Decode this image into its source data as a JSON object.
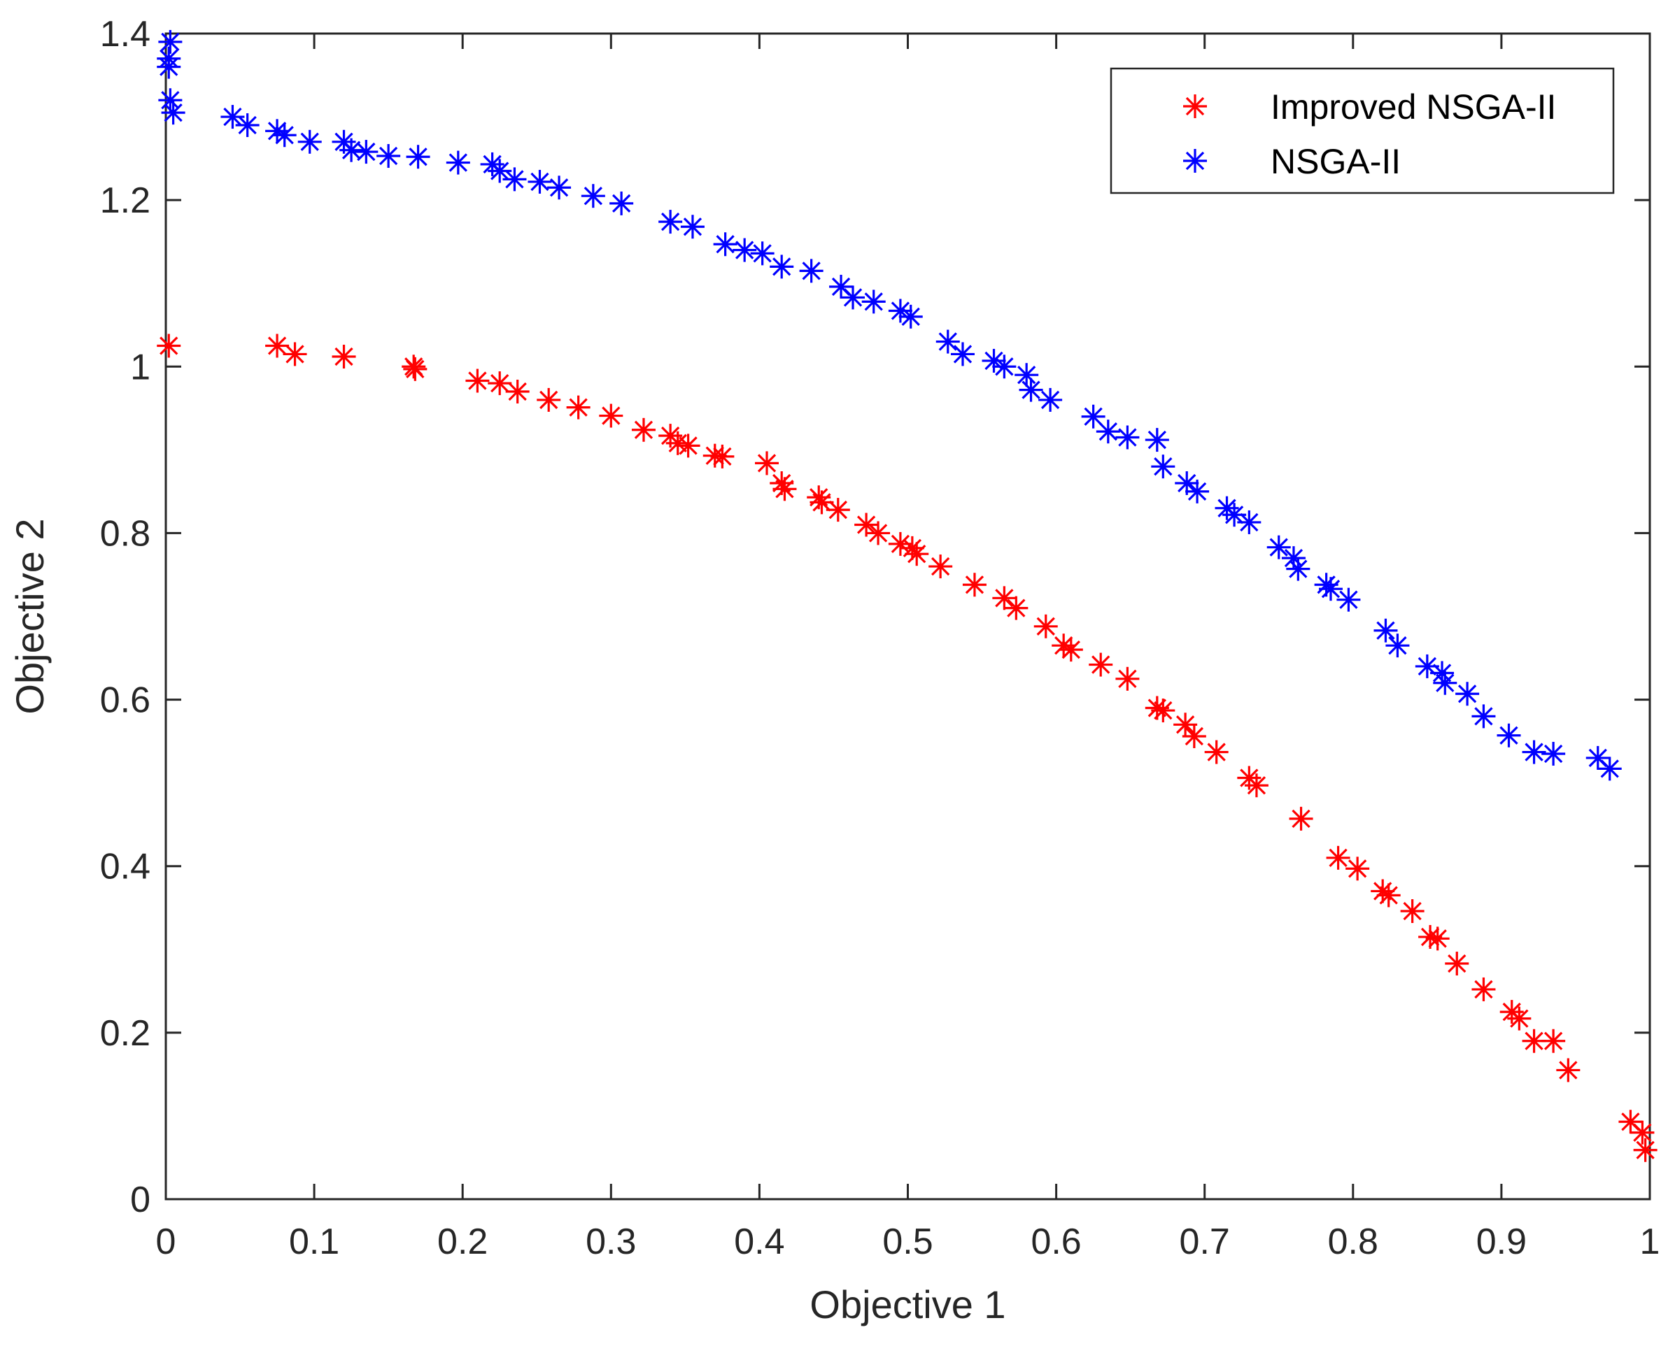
{
  "chart_data": {
    "type": "scatter",
    "title": "",
    "xlabel": "Objective 1",
    "ylabel": "Objective 2",
    "xlim": [
      0,
      1
    ],
    "ylim": [
      0,
      1.4
    ],
    "grid": false,
    "legend_position": "top-right",
    "x_tick_labels": [
      "0",
      "0.1",
      "0.2",
      "0.3",
      "0.4",
      "0.5",
      "0.6",
      "0.7",
      "0.8",
      "0.9",
      "1"
    ],
    "x_tick_values": [
      0,
      0.1,
      0.2,
      0.3,
      0.4,
      0.5,
      0.6,
      0.7,
      0.8,
      0.9,
      1
    ],
    "y_tick_labels": [
      "0",
      "0.2",
      "0.4",
      "0.6",
      "0.8",
      "1",
      "1.2",
      "1.4"
    ],
    "y_tick_values": [
      0,
      0.2,
      0.4,
      0.6,
      0.8,
      1.0,
      1.2,
      1.4
    ],
    "series": [
      {
        "name": "Improved NSGA-II",
        "color": "#ff0000",
        "marker": "asterisk",
        "points": [
          [
            0.002,
            1.025
          ],
          [
            0.075,
            1.025
          ],
          [
            0.087,
            1.015
          ],
          [
            0.12,
            1.012
          ],
          [
            0.167,
            1.0
          ],
          [
            0.168,
            0.997
          ],
          [
            0.21,
            0.983
          ],
          [
            0.225,
            0.98
          ],
          [
            0.237,
            0.97
          ],
          [
            0.258,
            0.96
          ],
          [
            0.278,
            0.951
          ],
          [
            0.3,
            0.941
          ],
          [
            0.322,
            0.924
          ],
          [
            0.34,
            0.917
          ],
          [
            0.345,
            0.908
          ],
          [
            0.352,
            0.905
          ],
          [
            0.37,
            0.893
          ],
          [
            0.375,
            0.892
          ],
          [
            0.405,
            0.884
          ],
          [
            0.415,
            0.86
          ],
          [
            0.417,
            0.853
          ],
          [
            0.44,
            0.843
          ],
          [
            0.442,
            0.837
          ],
          [
            0.453,
            0.828
          ],
          [
            0.472,
            0.81
          ],
          [
            0.48,
            0.8
          ],
          [
            0.495,
            0.787
          ],
          [
            0.503,
            0.782
          ],
          [
            0.506,
            0.775
          ],
          [
            0.522,
            0.76
          ],
          [
            0.545,
            0.738
          ],
          [
            0.565,
            0.722
          ],
          [
            0.573,
            0.71
          ],
          [
            0.593,
            0.688
          ],
          [
            0.605,
            0.665
          ],
          [
            0.61,
            0.66
          ],
          [
            0.63,
            0.642
          ],
          [
            0.648,
            0.625
          ],
          [
            0.668,
            0.59
          ],
          [
            0.672,
            0.587
          ],
          [
            0.687,
            0.57
          ],
          [
            0.693,
            0.556
          ],
          [
            0.708,
            0.537
          ],
          [
            0.73,
            0.506
          ],
          [
            0.735,
            0.497
          ],
          [
            0.765,
            0.457
          ],
          [
            0.79,
            0.41
          ],
          [
            0.803,
            0.397
          ],
          [
            0.82,
            0.37
          ],
          [
            0.824,
            0.365
          ],
          [
            0.84,
            0.346
          ],
          [
            0.852,
            0.315
          ],
          [
            0.857,
            0.313
          ],
          [
            0.87,
            0.283
          ],
          [
            0.888,
            0.252
          ],
          [
            0.907,
            0.225
          ],
          [
            0.912,
            0.217
          ],
          [
            0.922,
            0.19
          ],
          [
            0.935,
            0.19
          ],
          [
            0.945,
            0.155
          ],
          [
            0.987,
            0.093
          ],
          [
            0.995,
            0.08
          ],
          [
            0.997,
            0.059
          ]
        ]
      },
      {
        "name": "NSGA-II",
        "color": "#0000ff",
        "marker": "asterisk",
        "points": [
          [
            0.003,
            1.39
          ],
          [
            0.002,
            1.37
          ],
          [
            0.002,
            1.36
          ],
          [
            0.003,
            1.32
          ],
          [
            0.005,
            1.305
          ],
          [
            0.045,
            1.3
          ],
          [
            0.055,
            1.29
          ],
          [
            0.075,
            1.283
          ],
          [
            0.08,
            1.278
          ],
          [
            0.097,
            1.27
          ],
          [
            0.12,
            1.27
          ],
          [
            0.125,
            1.26
          ],
          [
            0.135,
            1.258
          ],
          [
            0.15,
            1.253
          ],
          [
            0.17,
            1.252
          ],
          [
            0.197,
            1.245
          ],
          [
            0.22,
            1.243
          ],
          [
            0.225,
            1.235
          ],
          [
            0.235,
            1.225
          ],
          [
            0.252,
            1.222
          ],
          [
            0.265,
            1.215
          ],
          [
            0.288,
            1.205
          ],
          [
            0.307,
            1.196
          ],
          [
            0.34,
            1.174
          ],
          [
            0.355,
            1.168
          ],
          [
            0.377,
            1.147
          ],
          [
            0.39,
            1.14
          ],
          [
            0.402,
            1.136
          ],
          [
            0.415,
            1.12
          ],
          [
            0.435,
            1.115
          ],
          [
            0.455,
            1.096
          ],
          [
            0.463,
            1.083
          ],
          [
            0.477,
            1.078
          ],
          [
            0.495,
            1.067
          ],
          [
            0.502,
            1.06
          ],
          [
            0.527,
            1.03
          ],
          [
            0.537,
            1.015
          ],
          [
            0.558,
            1.007
          ],
          [
            0.565,
            1.0
          ],
          [
            0.58,
            0.99
          ],
          [
            0.583,
            0.972
          ],
          [
            0.596,
            0.96
          ],
          [
            0.625,
            0.94
          ],
          [
            0.635,
            0.922
          ],
          [
            0.648,
            0.915
          ],
          [
            0.668,
            0.912
          ],
          [
            0.672,
            0.88
          ],
          [
            0.688,
            0.86
          ],
          [
            0.695,
            0.85
          ],
          [
            0.715,
            0.83
          ],
          [
            0.72,
            0.822
          ],
          [
            0.73,
            0.813
          ],
          [
            0.75,
            0.783
          ],
          [
            0.76,
            0.77
          ],
          [
            0.763,
            0.757
          ],
          [
            0.782,
            0.738
          ],
          [
            0.785,
            0.733
          ],
          [
            0.797,
            0.72
          ],
          [
            0.822,
            0.683
          ],
          [
            0.83,
            0.665
          ],
          [
            0.85,
            0.64
          ],
          [
            0.86,
            0.632
          ],
          [
            0.862,
            0.62
          ],
          [
            0.877,
            0.607
          ],
          [
            0.888,
            0.58
          ],
          [
            0.905,
            0.557
          ],
          [
            0.922,
            0.537
          ],
          [
            0.935,
            0.535
          ],
          [
            0.965,
            0.53
          ],
          [
            0.973,
            0.517
          ]
        ]
      }
    ]
  }
}
